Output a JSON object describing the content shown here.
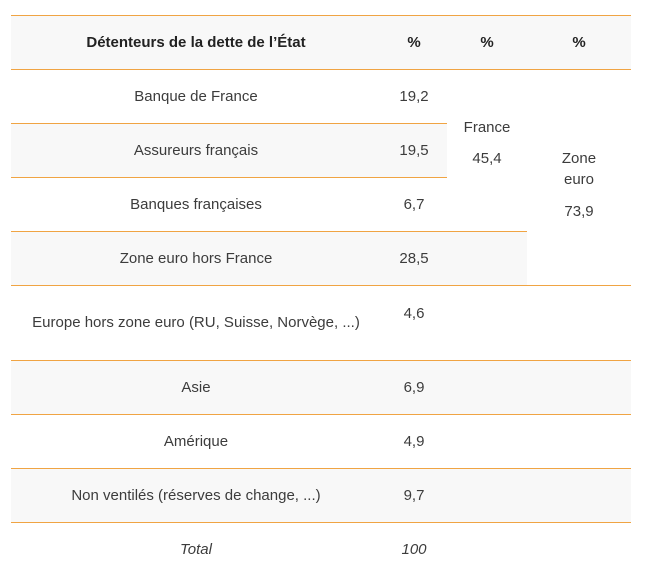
{
  "table": {
    "headers": [
      "Détenteurs de la dette de l’État",
      "%",
      "%",
      "%"
    ],
    "rows": [
      {
        "holder": "Banque de France",
        "pct": "19,2"
      },
      {
        "holder": "Assureurs français",
        "pct": "19,5"
      },
      {
        "holder": "Banques françaises",
        "pct": "6,7"
      },
      {
        "holder": "Zone euro hors France",
        "pct": "28,5"
      },
      {
        "holder": "Europe hors zone euro (RU, Suisse, Norvège, ...)",
        "pct": "4,6"
      },
      {
        "holder": "Asie",
        "pct": "6,9"
      },
      {
        "holder": "Amérique",
        "pct": "4,9"
      },
      {
        "holder": "Non ventilés (réserves de change, ...)",
        "pct": "9,7"
      }
    ],
    "france_group": {
      "label": "France",
      "value": "45,4"
    },
    "euro_group": {
      "label": "Zone euro",
      "value": "73,9"
    },
    "total": {
      "label": "Total",
      "value": "100"
    }
  },
  "colors": {
    "accent_border": "#f0a443",
    "shaded_row": "#f8f8f8",
    "text": "#3c3c3c"
  }
}
